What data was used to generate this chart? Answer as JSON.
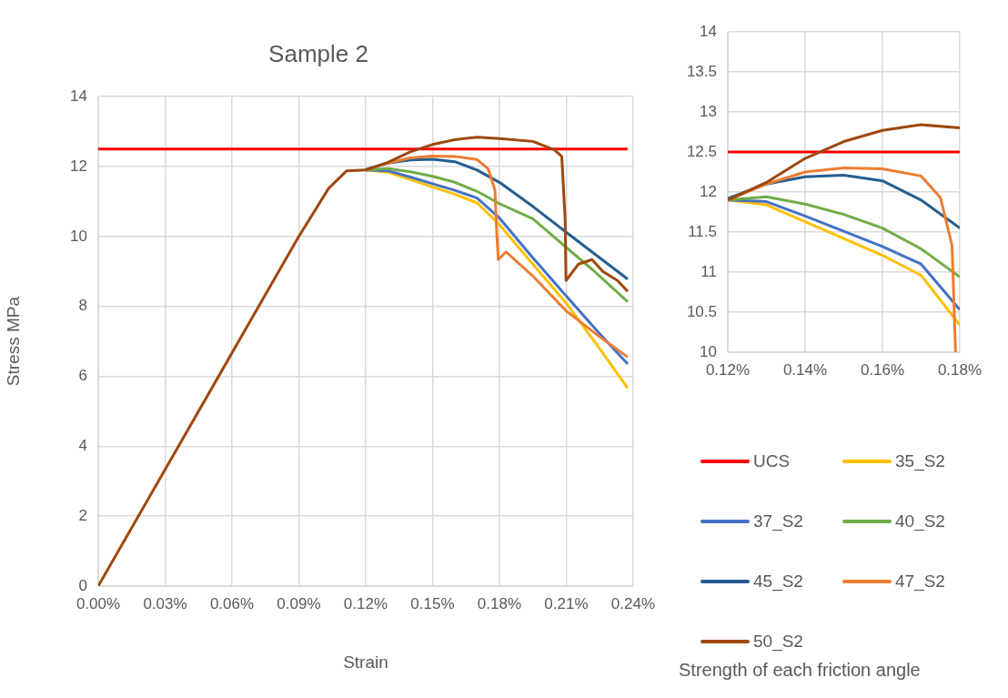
{
  "chart_data": [
    {
      "type": "line",
      "title": "Sample 2",
      "xlabel": "Strain",
      "ylabel": "Stress MPa",
      "legend": "right",
      "legend_title": "Strength of each friction angle",
      "grid": true,
      "xlim": [
        0,
        0.24
      ],
      "xticks": [
        {
          "value": 0,
          "label": "0.00%"
        },
        {
          "value": 0.03,
          "label": "0.03%"
        },
        {
          "value": 0.06,
          "label": "0.06%"
        },
        {
          "value": 0.09,
          "label": "0.09%"
        },
        {
          "value": 0.12,
          "label": "0.12%"
        },
        {
          "value": 0.15,
          "label": "0.15%"
        },
        {
          "value": 0.18,
          "label": "0.18%"
        },
        {
          "value": 0.21,
          "label": "0.21%"
        },
        {
          "value": 0.24,
          "label": "0.24%"
        }
      ],
      "ylim": [
        0,
        14
      ],
      "yticks": [
        0,
        2,
        4,
        6,
        8,
        10,
        12,
        14
      ],
      "series": [
        {
          "name": "UCS",
          "color": "#ff0000",
          "x": [
            0,
            0.2376
          ],
          "values": [
            12.5,
            12.5
          ]
        },
        {
          "name": "35_S2",
          "color": "#ffc000",
          "x": [
            0.12,
            0.13,
            0.14,
            0.15,
            0.16,
            0.17,
            0.18,
            0.195,
            0.21,
            0.225,
            0.2376
          ],
          "values": [
            11.9,
            11.84,
            11.63,
            11.42,
            11.21,
            10.96,
            10.34,
            9.21,
            8.09,
            6.79,
            5.66
          ]
        },
        {
          "name": "37_S2",
          "color": "#4472c4",
          "x": [
            0.12,
            0.13,
            0.14,
            0.15,
            0.16,
            0.17,
            0.18,
            0.195,
            0.21,
            0.225,
            0.2376
          ],
          "values": [
            11.9,
            11.88,
            11.7,
            11.51,
            11.32,
            11.1,
            10.53,
            9.39,
            8.3,
            7.22,
            6.35
          ]
        },
        {
          "name": "40_S2",
          "color": "#70ad47",
          "x": [
            0.12,
            0.13,
            0.14,
            0.15,
            0.16,
            0.17,
            0.18,
            0.195,
            0.21,
            0.222,
            0.2376
          ],
          "values": [
            11.9,
            11.94,
            11.85,
            11.72,
            11.55,
            11.29,
            10.94,
            10.51,
            9.69,
            9.04,
            8.13
          ]
        },
        {
          "name": "45_S2",
          "color": "#255e91",
          "x": [
            0.12,
            0.13,
            0.14,
            0.15,
            0.16,
            0.17,
            0.18,
            0.195,
            0.21,
            0.2376
          ],
          "values": [
            11.92,
            12.1,
            12.19,
            12.21,
            12.14,
            11.9,
            11.55,
            10.86,
            10.12,
            8.78
          ]
        },
        {
          "name": "47_S2",
          "color": "#ed7d31",
          "x": [
            0.12,
            0.13,
            0.14,
            0.15,
            0.16,
            0.17,
            0.175,
            0.178,
            0.1789,
            0.1795,
            0.183,
            0.195,
            0.21,
            0.225,
            0.2376
          ],
          "values": [
            11.9,
            12.1,
            12.25,
            12.3,
            12.29,
            12.2,
            11.93,
            11.33,
            10,
            9.34,
            9.56,
            8.87,
            7.87,
            7.13,
            6.55
          ]
        },
        {
          "name": "50_S2",
          "color": "#9e480e",
          "x": [
            0,
            0.09,
            0.1034,
            0.1115,
            0.12,
            0.13,
            0.14,
            0.15,
            0.16,
            0.17,
            0.18,
            0.195,
            0.2047,
            0.208,
            0.2095,
            0.2099,
            0.2155,
            0.2216,
            0.2264,
            0.233,
            0.2376
          ],
          "values": [
            0,
            10,
            11.38,
            11.88,
            11.9,
            12.12,
            12.42,
            12.63,
            12.77,
            12.84,
            12.8,
            12.72,
            12.48,
            12.29,
            10.5,
            8.74,
            9.21,
            9.34,
            9,
            8.74,
            8.43
          ]
        }
      ]
    },
    {
      "type": "line",
      "grid": true,
      "xlim": [
        0.12,
        0.18
      ],
      "xticks": [
        {
          "value": 0.12,
          "label": "0.12%"
        },
        {
          "value": 0.14,
          "label": "0.14%"
        },
        {
          "value": 0.16,
          "label": "0.16%"
        },
        {
          "value": 0.18,
          "label": "0.18%"
        }
      ],
      "ylim": [
        10,
        14
      ],
      "yticks": [
        10,
        10.5,
        11,
        11.5,
        12,
        12.5,
        13,
        13.5,
        14
      ],
      "series": [
        {
          "color": "#ff0000",
          "x": [
            0.12,
            0.18
          ],
          "values": [
            12.5,
            12.5
          ]
        },
        {
          "color": "#ffc000",
          "x": [
            0.12,
            0.13,
            0.14,
            0.15,
            0.16,
            0.17,
            0.18
          ],
          "values": [
            11.9,
            11.84,
            11.63,
            11.42,
            11.21,
            10.96,
            10.34
          ]
        },
        {
          "color": "#4472c4",
          "x": [
            0.12,
            0.13,
            0.14,
            0.15,
            0.16,
            0.17,
            0.18
          ],
          "values": [
            11.9,
            11.88,
            11.7,
            11.51,
            11.32,
            11.1,
            10.53
          ]
        },
        {
          "color": "#70ad47",
          "x": [
            0.12,
            0.13,
            0.14,
            0.15,
            0.16,
            0.17,
            0.18
          ],
          "values": [
            11.9,
            11.94,
            11.85,
            11.72,
            11.55,
            11.29,
            10.94
          ]
        },
        {
          "color": "#255e91",
          "x": [
            0.12,
            0.13,
            0.14,
            0.15,
            0.16,
            0.17,
            0.18
          ],
          "values": [
            11.92,
            12.1,
            12.19,
            12.21,
            12.14,
            11.9,
            11.55
          ]
        },
        {
          "color": "#ed7d31",
          "x": [
            0.12,
            0.13,
            0.14,
            0.15,
            0.16,
            0.17,
            0.175,
            0.178,
            0.1789
          ],
          "values": [
            11.9,
            12.1,
            12.25,
            12.3,
            12.29,
            12.2,
            11.93,
            11.33,
            10
          ]
        },
        {
          "color": "#9e480e",
          "x": [
            0.12,
            0.13,
            0.14,
            0.15,
            0.16,
            0.17,
            0.18
          ],
          "values": [
            11.9,
            12.12,
            12.42,
            12.63,
            12.77,
            12.84,
            12.8
          ]
        }
      ]
    }
  ]
}
